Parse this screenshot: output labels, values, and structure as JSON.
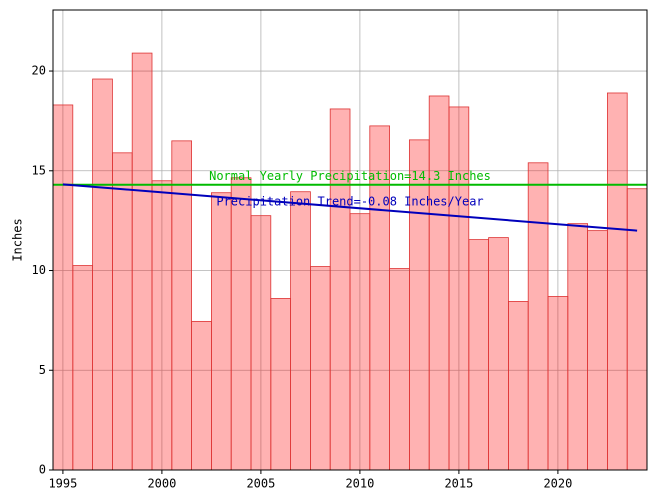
{
  "chart_data": {
    "type": "bar",
    "x": [
      1995,
      1996,
      1997,
      1998,
      1999,
      2000,
      2001,
      2002,
      2003,
      2004,
      2005,
      2006,
      2007,
      2008,
      2009,
      2010,
      2011,
      2012,
      2013,
      2014,
      2015,
      2016,
      2017,
      2018,
      2019,
      2020,
      2021,
      2022,
      2023,
      2024
    ],
    "values": [
      18.3,
      10.25,
      19.6,
      15.9,
      20.9,
      14.5,
      16.5,
      7.45,
      13.9,
      14.65,
      12.75,
      8.6,
      13.95,
      10.2,
      18.1,
      12.85,
      17.25,
      10.1,
      16.55,
      18.75,
      18.2,
      11.55,
      11.65,
      8.45,
      15.4,
      8.7,
      12.35,
      12.0,
      18.9,
      14.1
    ],
    "color": "#ff0000",
    "alpha": 0.3,
    "edgecolor": "#dd3333",
    "ylabel": "Inches",
    "xlim": [
      1994.5,
      2024.5
    ],
    "xticks": [
      1995,
      2000,
      2005,
      2010,
      2015,
      2020
    ],
    "ylim": [
      0,
      23.06
    ],
    "yticks": [
      0,
      5,
      10,
      15,
      20
    ],
    "grid": true,
    "normal": {
      "value": 14.3,
      "color": "#00bb00",
      "label": "Normal Yearly Precipitation=14.3 Inches"
    },
    "trend": {
      "x": [
        1995,
        2024
      ],
      "values": [
        14.32,
        12.0
      ],
      "color": "#0000bb",
      "label": "Precipitation Trend=-0.08 Inches/Year"
    }
  }
}
